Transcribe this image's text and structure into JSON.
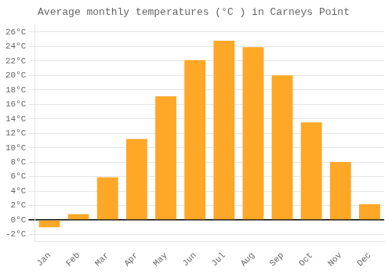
{
  "chart_data": {
    "type": "bar",
    "title": "Average monthly temperatures (°C ) in Carneys Point",
    "categories": [
      "Jan",
      "Feb",
      "Mar",
      "Apr",
      "May",
      "Jun",
      "Jul",
      "Aug",
      "Sep",
      "Oct",
      "Nov",
      "Dec"
    ],
    "values": [
      -1.0,
      0.8,
      5.9,
      11.2,
      17.1,
      22.1,
      24.8,
      23.9,
      20.0,
      13.5,
      8.0,
      2.2
    ],
    "color": "#FFA726",
    "ylim": [
      -3,
      27
    ],
    "yticks": [
      {
        "value": -2,
        "label": "-2°C"
      },
      {
        "value": 0,
        "label": "0°C"
      },
      {
        "value": 2,
        "label": "2°C"
      },
      {
        "value": 4,
        "label": "4°C"
      },
      {
        "value": 6,
        "label": "6°C"
      },
      {
        "value": 8,
        "label": "8°C"
      },
      {
        "value": 10,
        "label": "10°C"
      },
      {
        "value": 12,
        "label": "12°C"
      },
      {
        "value": 14,
        "label": "14°C"
      },
      {
        "value": 16,
        "label": "16°C"
      },
      {
        "value": 18,
        "label": "18°C"
      },
      {
        "value": 20,
        "label": "20°C"
      },
      {
        "value": 22,
        "label": "22°C"
      },
      {
        "value": 24,
        "label": "24°C"
      },
      {
        "value": 26,
        "label": "26°C"
      }
    ],
    "grid": true
  }
}
